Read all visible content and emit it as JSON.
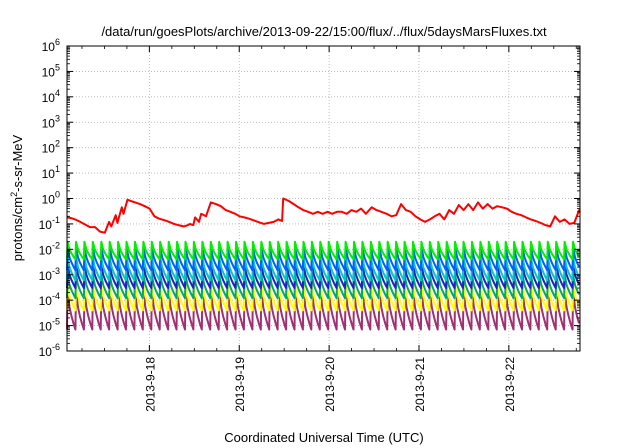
{
  "chart_data": {
    "type": "line",
    "title": "/data/run/goesPlots/archive/2013-09-22/15:00/flux/../flux/5daysMarsFluxes.txt",
    "xlabel": "Coordinated Universal Time (UTC)",
    "ylabel": {
      "prefix": "protons/cm",
      "sup": "2",
      "suffix": "-s-sr-MeV"
    },
    "yscale": "log",
    "ylim": [
      1e-06,
      1000000.0
    ],
    "yticks": [
      {
        "base": "10",
        "exp": "-6",
        "value": 1e-06
      },
      {
        "base": "10",
        "exp": "-5",
        "value": 1e-05
      },
      {
        "base": "10",
        "exp": "-4",
        "value": 0.0001
      },
      {
        "base": "10",
        "exp": "-3",
        "value": 0.001
      },
      {
        "base": "10",
        "exp": "-2",
        "value": 0.01
      },
      {
        "base": "10",
        "exp": "-1",
        "value": 0.1
      },
      {
        "base": "10",
        "exp": "0",
        "value": 1
      },
      {
        "base": "10",
        "exp": "1",
        "value": 10
      },
      {
        "base": "10",
        "exp": "2",
        "value": 100
      },
      {
        "base": "10",
        "exp": "3",
        "value": 1000
      },
      {
        "base": "10",
        "exp": "4",
        "value": 10000
      },
      {
        "base": "10",
        "exp": "5",
        "value": 100000
      },
      {
        "base": "10",
        "exp": "6",
        "value": 1000000
      }
    ],
    "xlim": [
      "2013-09-17T02:00",
      "2013-09-22T19:00"
    ],
    "xticks": [
      {
        "label": "2013-9-18",
        "time": "2013-09-18T00:00"
      },
      {
        "label": "2013-9-19",
        "time": "2013-09-19T00:00"
      },
      {
        "label": "2013-9-20",
        "time": "2013-09-20T00:00"
      },
      {
        "label": "2013-9-21",
        "time": "2013-09-21T00:00"
      },
      {
        "label": "2013-9-22",
        "time": "2013-09-22T00:00"
      }
    ],
    "grid": true,
    "series": [
      {
        "color": "#ff0000",
        "x": [
          "2013-09-17T02:00",
          "2013-09-17T03:07",
          "2013-09-17T04:10",
          "2013-09-17T05:33",
          "2013-09-17T06:50",
          "2013-09-17T08:07",
          "2013-09-17T09:31",
          "2013-09-17T10:48",
          "2013-09-17T12:05",
          "2013-09-17T13:15",
          "2013-09-17T13:50",
          "2013-09-17T15:00",
          "2013-09-17T15:28",
          "2013-09-17T16:38",
          "2013-09-17T17:06",
          "2013-09-17T18:10",
          "2013-09-17T19:03",
          "2013-09-17T20:12",
          "2013-09-17T21:29",
          "2013-09-17T22:46",
          "2013-09-18T00:04",
          "2013-09-18T01:21",
          "2013-09-18T02:38",
          "2013-09-18T04:01",
          "2013-09-18T05:19",
          "2013-09-18T06:36",
          "2013-09-18T07:42",
          "2013-09-18T09:10",
          "2013-09-18T10:20",
          "2013-09-18T10:48",
          "2013-09-18T11:44",
          "2013-09-18T12:12",
          "2013-09-18T13:15",
          "2013-09-18T13:50",
          "2013-09-18T15:07",
          "2013-09-18T16:24",
          "2013-09-18T17:48",
          "2013-09-18T19:06",
          "2013-09-18T20:23",
          "2013-09-18T21:40",
          "2013-09-18T22:57",
          "2013-09-19T00:04",
          "2013-09-19T01:21",
          "2013-09-19T02:38",
          "2013-09-19T03:44",
          "2013-09-19T05:01",
          "2013-09-19T06:36",
          "2013-09-19T07:53",
          "2013-09-19T09:10",
          "2013-09-19T10:27",
          "2013-09-19T11:26",
          "2013-09-19T11:44",
          "2013-09-19T13:15",
          "2013-09-19T14:32",
          "2013-09-19T15:49",
          "2013-09-19T17:06",
          "2013-09-19T18:23",
          "2013-09-19T19:41",
          "2013-09-19T20:58",
          "2013-09-19T22:15",
          "2013-09-19T23:36",
          "2013-09-20T00:49",
          "2013-09-20T02:07",
          "2013-09-20T03:24",
          "2013-09-20T04:41",
          "2013-09-20T05:58",
          "2013-09-20T07:15",
          "2013-09-20T08:32",
          "2013-09-20T09:49",
          "2013-09-20T11:23",
          "2013-09-20T12:40",
          "2013-09-20T13:57",
          "2013-09-20T15:21",
          "2013-09-20T16:38",
          "2013-09-20T17:55",
          "2013-09-20T19:13",
          "2013-09-20T20:30",
          "2013-09-20T21:47",
          "2013-09-20T23:04",
          "2013-09-21T00:21",
          "2013-09-21T01:38",
          "2013-09-21T02:55",
          "2013-09-21T04:12",
          "2013-09-21T05:29",
          "2013-09-21T06:46",
          "2013-09-21T08:04",
          "2013-09-21T09:21",
          "2013-09-21T10:38",
          "2013-09-21T11:55",
          "2013-09-21T13:12",
          "2013-09-21T14:29",
          "2013-09-21T15:46",
          "2013-09-21T17:03",
          "2013-09-21T18:20",
          "2013-09-21T19:38",
          "2013-09-21T20:55",
          "2013-09-21T22:12",
          "2013-09-21T23:29",
          "2013-09-22T00:46",
          "2013-09-22T02:03",
          "2013-09-22T03:20",
          "2013-09-22T04:37",
          "2013-09-22T05:54",
          "2013-09-22T07:12",
          "2013-09-22T08:29",
          "2013-09-22T09:46",
          "2013-09-22T11:03",
          "2013-09-22T12:20",
          "2013-09-22T13:37",
          "2013-09-22T14:54",
          "2013-09-22T16:11",
          "2013-09-22T17:28",
          "2013-09-22T18:45",
          "2013-09-22T19:00"
        ],
        "y": [
          0.18,
          0.17,
          0.15,
          0.12,
          0.095,
          0.075,
          0.075,
          0.05,
          0.045,
          0.12,
          0.08,
          0.22,
          0.11,
          0.45,
          0.25,
          0.9,
          0.8,
          0.7,
          0.6,
          0.5,
          0.4,
          0.2,
          0.16,
          0.14,
          0.12,
          0.1,
          0.09,
          0.08,
          0.09,
          0.1,
          0.09,
          0.18,
          0.12,
          0.25,
          0.2,
          0.7,
          0.6,
          0.5,
          0.35,
          0.3,
          0.25,
          0.2,
          0.18,
          0.16,
          0.14,
          0.12,
          0.1,
          0.11,
          0.12,
          0.15,
          0.13,
          1,
          0.8,
          0.6,
          0.45,
          0.35,
          0.3,
          0.25,
          0.3,
          0.25,
          0.3,
          0.25,
          0.3,
          0.3,
          0.25,
          0.35,
          0.3,
          0.4,
          0.25,
          0.45,
          0.35,
          0.3,
          0.25,
          0.2,
          0.22,
          0.6,
          0.35,
          0.3,
          0.2,
          0.15,
          0.12,
          0.15,
          0.2,
          0.25,
          0.15,
          0.35,
          0.25,
          0.55,
          0.35,
          0.6,
          0.35,
          0.7,
          0.4,
          0.6,
          0.4,
          0.5,
          0.45,
          0.4,
          0.3,
          0.25,
          0.22,
          0.18,
          0.15,
          0.13,
          0.11,
          0.09,
          0.08,
          0.2,
          0.12,
          0.15,
          0.1,
          0.11,
          0.35,
          0.28
        ]
      },
      {
        "color": "#00ee00",
        "x": [
          "2013-09-17T02:00",
          "2013-09-22T19:00"
        ],
        "peak": 0.02,
        "trough": 0.004
      },
      {
        "color": "#0060ff",
        "x": [
          "2013-09-17T02:00",
          "2013-09-22T19:00"
        ],
        "peak": 0.012,
        "trough": 0.0015
      },
      {
        "color": "#00c8c8",
        "x": [
          "2013-09-17T02:00",
          "2013-09-22T19:00"
        ],
        "peak": 0.005,
        "trough": 0.0006
      },
      {
        "color": "#2020cc",
        "x": [
          "2013-09-17T02:00",
          "2013-09-22T19:00"
        ],
        "peak": 0.0025,
        "trough": 0.0003
      },
      {
        "color": "#00aa66",
        "x": [
          "2013-09-17T02:00",
          "2013-09-22T19:00"
        ],
        "peak": 0.001,
        "trough": 0.00012
      },
      {
        "color": "#ffff00",
        "x": [
          "2013-09-17T02:00",
          "2013-09-22T19:00"
        ],
        "peak": 0.0004,
        "trough": 4e-05
      },
      {
        "color": "#a03070",
        "x": [
          "2013-09-17T02:00",
          "2013-09-22T19:00"
        ],
        "peak": 0.00025,
        "trough": 7e-06
      }
    ]
  }
}
